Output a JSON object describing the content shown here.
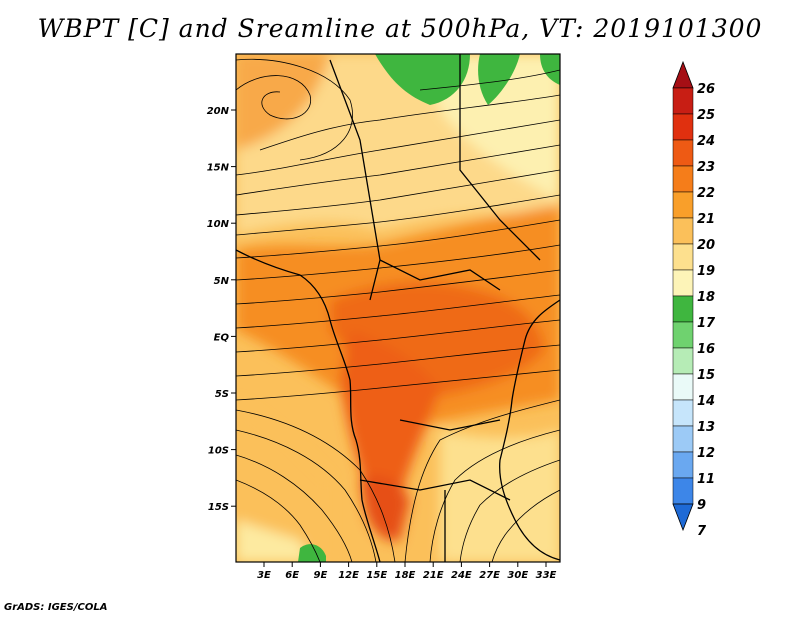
{
  "title": "WBPT [C] and Sreamline at 500hPa, VT: 2019101300",
  "credit": "GrADS: IGES/COLA",
  "map": {
    "lon_ticks": [
      "3E",
      "6E",
      "9E",
      "12E",
      "15E",
      "18E",
      "21E",
      "24E",
      "27E",
      "30E",
      "33E"
    ],
    "lat_ticks": [
      "20N",
      "15N",
      "10N",
      "5N",
      "EQ",
      "5S",
      "10S",
      "15S"
    ]
  },
  "colorbar": {
    "labels": [
      "26",
      "25",
      "24",
      "23",
      "22",
      "21",
      "20",
      "19",
      "18",
      "17",
      "16",
      "15",
      "14",
      "13",
      "12",
      "11",
      "9",
      "7"
    ],
    "colors": [
      "#a50f15",
      "#c81e14",
      "#e0300f",
      "#ee5a14",
      "#f57d1a",
      "#f99f2a",
      "#fbc05a",
      "#fde08e",
      "#fdf4b8",
      "#3fb63f",
      "#6fd26f",
      "#b6ecb6",
      "#eafaf8",
      "#c6e5fb",
      "#9ccaf6",
      "#6aa8f0",
      "#3d86e8",
      "#1e6ad6"
    ]
  }
}
